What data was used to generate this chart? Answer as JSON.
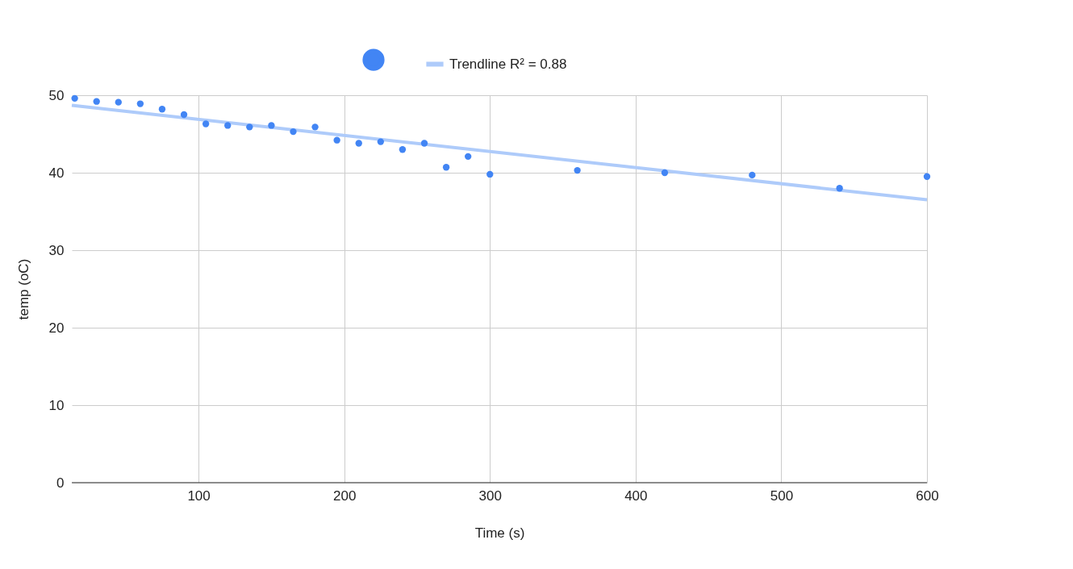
{
  "chart_data": {
    "type": "scatter",
    "xlabel": "Time (s)",
    "ylabel": "temp (oC)",
    "xlim": [
      13,
      600
    ],
    "xticks": [
      100,
      200,
      300,
      400,
      500,
      600
    ],
    "ylim": [
      0,
      50
    ],
    "yticks": [
      0,
      10,
      20,
      30,
      40,
      50
    ],
    "grid": true,
    "legend": "top",
    "series": [
      {
        "color": "#4285f4",
        "marker": "circle",
        "x": [
          15,
          30,
          45,
          60,
          75,
          90,
          105,
          120,
          135,
          150,
          165,
          180,
          195,
          210,
          225,
          240,
          255,
          270,
          285,
          300,
          360,
          420,
          480,
          540,
          600
        ],
        "values": [
          49.6,
          49.2,
          49.1,
          48.9,
          48.2,
          47.5,
          46.3,
          46.1,
          45.9,
          46.1,
          45.3,
          45.9,
          44.2,
          43.8,
          44.0,
          43.0,
          43.8,
          40.7,
          42.1,
          39.8,
          40.3,
          40.0,
          39.7,
          38.0,
          39.5
        ]
      },
      {
        "type": "line",
        "name": "Trendline  R² = 0.88",
        "color": "#aecbfa",
        "line_style": "solid",
        "x": [
          13,
          600
        ],
        "values": [
          48.7,
          36.5
        ]
      }
    ]
  }
}
